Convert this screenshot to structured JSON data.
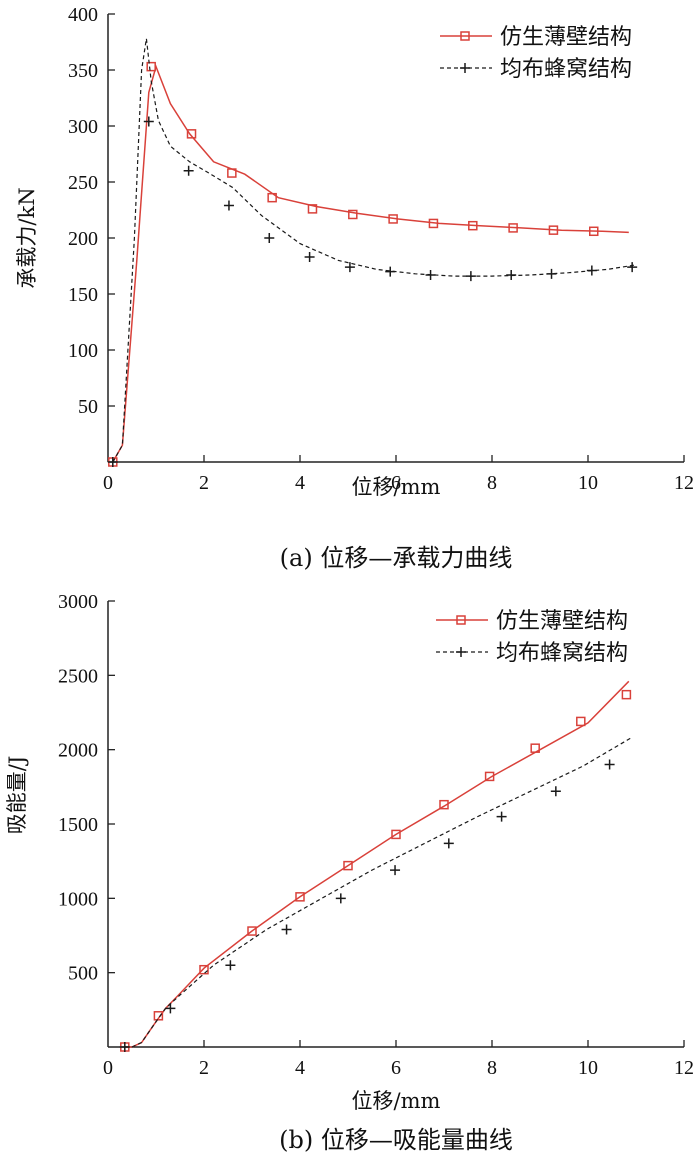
{
  "chart_data": [
    {
      "type": "line",
      "caption": "(a) 位移—承载力曲线",
      "xlabel": "位移/mm",
      "ylabel": "承载力/kN",
      "xlim": [
        0,
        12
      ],
      "ylim": [
        0,
        400
      ],
      "xticks": [
        "0",
        "2",
        "4",
        "6",
        "8",
        "10",
        "12"
      ],
      "xtick_values": [
        0,
        2,
        4,
        6,
        8,
        10,
        12
      ],
      "yticks": [
        "400",
        "350",
        "300",
        "250",
        "200",
        "150",
        "100",
        "50"
      ],
      "ytick_values": [
        400,
        350,
        300,
        250,
        200,
        150,
        100,
        50
      ],
      "legend_position": "top-right",
      "series": [
        {
          "name": "仿生薄壁结构",
          "color": "#d9413a",
          "marker": "square",
          "line": "solid",
          "x": [
            0.1,
            0.3,
            0.6,
            0.85,
            1.0,
            1.3,
            1.7,
            2.2,
            2.85,
            3.55,
            4.35,
            5.2,
            6.05,
            6.9,
            7.75,
            8.6,
            9.45,
            10.3,
            10.85
          ],
          "y": [
            0,
            15,
            180,
            330,
            353,
            320,
            293,
            268,
            257,
            236,
            228,
            222,
            217,
            213,
            211,
            209,
            207,
            206,
            205
          ],
          "markers_x": [
            0.1,
            0.9,
            1.74,
            2.58,
            3.42,
            4.26,
            5.1,
            5.94,
            6.78,
            7.6,
            8.44,
            9.28,
            10.12
          ],
          "markers_y": [
            0,
            353,
            293,
            258,
            236,
            226,
            221,
            217,
            213,
            211,
            209,
            207,
            206
          ]
        },
        {
          "name": "均布蜂窝结构",
          "color": "#1a1a1a",
          "marker": "plus",
          "line": "dashed",
          "x": [
            0.1,
            0.3,
            0.55,
            0.7,
            0.8,
            0.9,
            1.05,
            1.3,
            1.7,
            2.1,
            2.6,
            3.2,
            4.0,
            4.8,
            5.6,
            6.4,
            7.2,
            8.0,
            8.8,
            9.6,
            10.4,
            11.0
          ],
          "y": [
            0,
            15,
            200,
            350,
            378,
            340,
            305,
            282,
            268,
            258,
            245,
            220,
            195,
            180,
            172,
            168,
            166,
            166,
            167,
            169,
            172,
            176
          ],
          "markers_x": [
            0.1,
            0.85,
            1.68,
            2.52,
            3.36,
            4.2,
            5.04,
            5.88,
            6.72,
            7.56,
            8.4,
            9.24,
            10.08,
            10.92
          ],
          "markers_y": [
            0,
            304,
            260,
            229,
            200,
            183,
            174,
            170,
            167,
            166,
            167,
            168,
            171,
            174
          ]
        }
      ]
    },
    {
      "type": "line",
      "caption": "(b) 位移—吸能量曲线",
      "xlabel": "位移/mm",
      "ylabel": "吸能量/J",
      "xlim": [
        0,
        12
      ],
      "ylim": [
        0,
        3000
      ],
      "xticks": [
        "0",
        "2",
        "4",
        "6",
        "8",
        "10",
        "12"
      ],
      "xtick_values": [
        0,
        2,
        4,
        6,
        8,
        10,
        12
      ],
      "yticks": [
        "3000",
        "2500",
        "2000",
        "1500",
        "1000",
        "500"
      ],
      "ytick_values": [
        3000,
        2500,
        2000,
        1500,
        1000,
        500
      ],
      "legend_position": "top-right",
      "series": [
        {
          "name": "仿生薄壁结构",
          "color": "#d9413a",
          "marker": "square",
          "line": "solid",
          "x": [
            0.35,
            0.5,
            0.7,
            0.85,
            1.0,
            1.2,
            1.5,
            2.0,
            3.0,
            4.0,
            5.0,
            6.0,
            7.0,
            8.0,
            9.0,
            10.0,
            10.85
          ],
          "y": [
            0,
            0,
            30,
            100,
            170,
            260,
            360,
            530,
            780,
            1010,
            1220,
            1430,
            1620,
            1820,
            2000,
            2180,
            2460
          ],
          "markers_x": [
            0.35,
            1.05,
            2.0,
            3.0,
            4.0,
            5.0,
            6.0,
            7.0,
            7.95,
            8.9,
            9.85,
            10.8
          ],
          "markers_y": [
            0,
            210,
            520,
            780,
            1010,
            1220,
            1430,
            1630,
            1820,
            2010,
            2190,
            2370
          ]
        },
        {
          "name": "均布蜂窝结构",
          "color": "#1a1a1a",
          "marker": "plus",
          "line": "dashed",
          "x": [
            0.35,
            0.5,
            0.7,
            0.85,
            1.0,
            1.2,
            1.5,
            2.2,
            3.3,
            4.4,
            5.5,
            6.6,
            7.7,
            8.8,
            9.9,
            10.9
          ],
          "y": [
            0,
            0,
            30,
            100,
            170,
            260,
            350,
            550,
            790,
            990,
            1190,
            1370,
            1550,
            1720,
            1890,
            2080
          ],
          "markers_x": [
            0.35,
            1.3,
            2.55,
            3.72,
            4.85,
            5.98,
            7.1,
            8.2,
            9.33,
            10.45
          ],
          "markers_y": [
            0,
            260,
            550,
            790,
            1000,
            1190,
            1370,
            1550,
            1720,
            1900
          ]
        }
      ]
    }
  ]
}
